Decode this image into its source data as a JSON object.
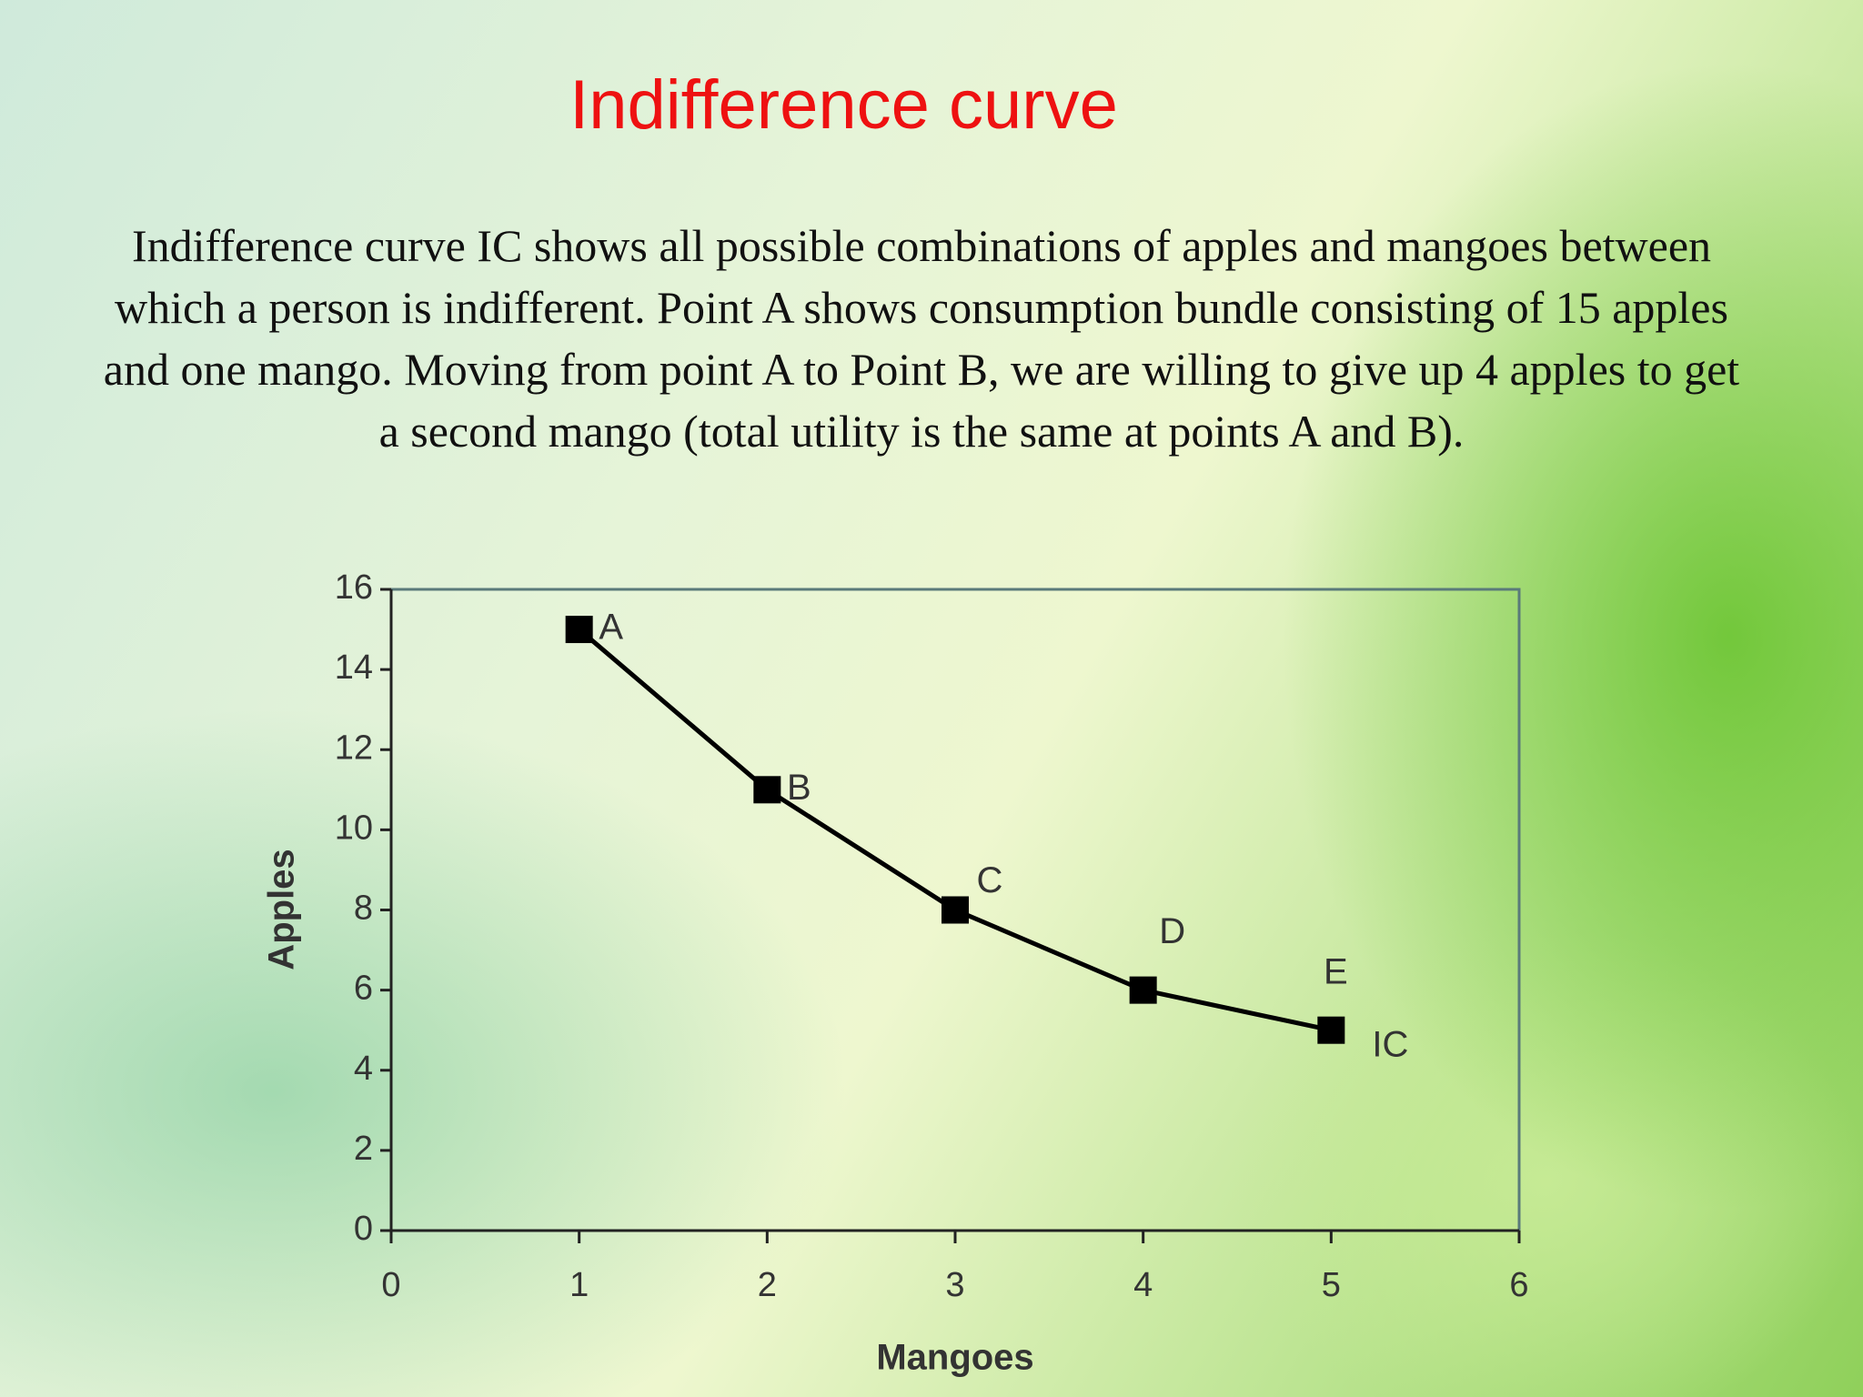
{
  "slide": {
    "title": "Indifference curve",
    "body": "Indifference curve IC shows all possible combinations of apples and mangoes between which a person is indifferent. Point A shows consumption bundle consisting of 15 apples and one mango. Moving from point A to Point B, we are willing to give up 4 apples to get a second mango (total utility is the same at points A and B)."
  },
  "chart_data": {
    "type": "line",
    "x_label": "Mangoes",
    "y_label": "Apples",
    "x": [
      1,
      2,
      3,
      4,
      5
    ],
    "values": [
      15,
      11,
      8,
      6,
      5
    ],
    "point_labels": [
      "A",
      "B",
      "C",
      "D",
      "E"
    ],
    "annotation": "IC",
    "color": "#000000",
    "xlim": [
      0,
      6
    ],
    "xticks": [
      0,
      1,
      2,
      3,
      4,
      5,
      6
    ],
    "ylim": [
      0,
      16
    ],
    "yticks": [
      0,
      2,
      4,
      6,
      8,
      10,
      12,
      14,
      16
    ],
    "grid": false,
    "markers": true
  }
}
